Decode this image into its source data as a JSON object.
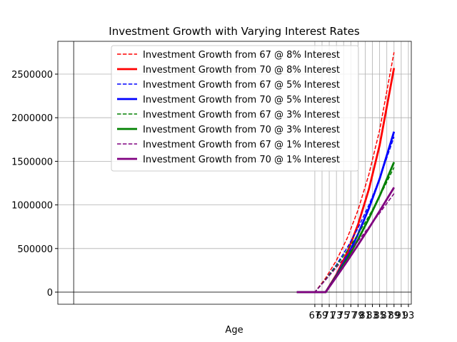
{
  "chart_data": {
    "type": "line",
    "title": "Investment Growth with Varying Interest Rates",
    "xlabel": "Age",
    "x": [
      62,
      67,
      70,
      73,
      76,
      79,
      82,
      85,
      89
    ],
    "series": [
      {
        "name": "Investment Growth from 67 @ 8% Interest",
        "color": "#ff0000",
        "linestyle": "dashed",
        "values": [
          0,
          0,
          161000,
          364000,
          619000,
          941000,
          1347000,
          1857000,
          2750000
        ]
      },
      {
        "name": "Investment Growth from 70 @ 8% Interest",
        "color": "#ff0000",
        "linestyle": "solid",
        "values": [
          0,
          0,
          0,
          201000,
          455000,
          774000,
          1177000,
          1683000,
          2570000
        ]
      },
      {
        "name": "Investment Growth from 67 @ 5% Interest",
        "color": "#0000ff",
        "linestyle": "dashed",
        "values": [
          0,
          0,
          146000,
          314000,
          510000,
          735000,
          997000,
          1300000,
          1780000
        ]
      },
      {
        "name": "Investment Growth from 70 @ 5% Interest",
        "color": "#0000ff",
        "linestyle": "solid",
        "values": [
          0,
          0,
          0,
          190000,
          409000,
          664000,
          958000,
          1299000,
          1840000
        ]
      },
      {
        "name": "Investment Growth from 67 @ 3% Interest",
        "color": "#008000",
        "linestyle": "dashed",
        "values": [
          0,
          0,
          145000,
          303000,
          475000,
          664000,
          870000,
          1096000,
          1430000
        ]
      },
      {
        "name": "Investment Growth from 70 @ 3% Interest",
        "color": "#008000",
        "linestyle": "solid",
        "values": [
          0,
          0,
          0,
          183000,
          384000,
          602000,
          842000,
          1103000,
          1490000
        ]
      },
      {
        "name": "Investment Growth from 67 @ 1% Interest",
        "color": "#800080",
        "linestyle": "dashed",
        "values": [
          0,
          0,
          140000,
          284000,
          433000,
          586000,
          744000,
          906000,
          1130000
        ]
      },
      {
        "name": "Investment Growth from 70 @ 1% Interest",
        "color": "#800080",
        "linestyle": "solid",
        "values": [
          0,
          0,
          0,
          175000,
          355000,
          541000,
          732000,
          929000,
          1200000
        ]
      }
    ],
    "xlim": [
      -4.4,
      93.8
    ],
    "ylim": [
      -139000,
      2876000
    ],
    "xticks": [
      67,
      69,
      71,
      73,
      75,
      77,
      79,
      81,
      83,
      85,
      87,
      89,
      91,
      93
    ],
    "yticks": [
      0,
      500000,
      1000000,
      1500000,
      2000000,
      2500000
    ],
    "grid": true,
    "legend": "upper center",
    "zero_lines": true
  }
}
